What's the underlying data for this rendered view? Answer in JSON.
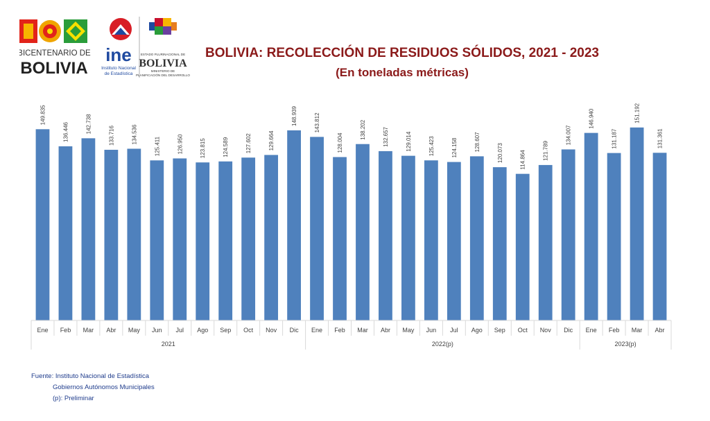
{
  "header": {
    "bicentenario_top": "BICENTENARIO DE",
    "bicentenario_bottom": "BOLIVIA",
    "ine_abbr": "ine",
    "ine_line1": "Instituto Nacional",
    "ine_line2": "de Estadística",
    "ministry_top": "ESTADO PLURINACIONAL DE",
    "ministry_country": "BOLIVIA",
    "ministry_line1": "MINISTERIO DE",
    "ministry_line2": "PLANIFICACIÓN DEL DESARROLLO"
  },
  "colors": {
    "bar": "#4f81bd",
    "title": "#8b1a1a",
    "footer": "#1f3c8c",
    "grid": "#d9d9d9"
  },
  "chart_data": {
    "type": "bar",
    "title": "BOLIVIA: RECOLECCIÓN DE RESIDUOS SÓLIDOS, 2021 - 2023",
    "subtitle": "(En toneladas métricas)",
    "categories": [
      "Ene",
      "Feb",
      "Mar",
      "Abr",
      "May",
      "Jun",
      "Jul",
      "Ago",
      "Sep",
      "Oct",
      "Nov",
      "Dic",
      "Ene",
      "Feb",
      "Mar",
      "Abr",
      "May",
      "Jun",
      "Jul",
      "Ago",
      "Sep",
      "Oct",
      "Nov",
      "Dic",
      "Ene",
      "Feb",
      "Mar",
      "Abr"
    ],
    "groups": [
      {
        "label": "2021",
        "count": 12
      },
      {
        "label": "2022(p)",
        "count": 12
      },
      {
        "label": "2023(p)",
        "count": 4
      }
    ],
    "values": [
      149835,
      136446,
      142738,
      133716,
      134536,
      125411,
      126950,
      123815,
      124589,
      127602,
      129664,
      148939,
      143812,
      128004,
      138202,
      132657,
      129014,
      125423,
      124158,
      128607,
      120073,
      114864,
      121789,
      134007,
      146940,
      131187,
      151192,
      131361
    ],
    "value_labels": [
      "149.835",
      "136.446",
      "142.738",
      "133.716",
      "134.536",
      "125.411",
      "126.950",
      "123.815",
      "124.589",
      "127.602",
      "129.664",
      "148.939",
      "143.812",
      "128.004",
      "138.202",
      "132.657",
      "129.014",
      "125.423",
      "124.158",
      "128.607",
      "120.073",
      "114.864",
      "121.789",
      "134.007",
      "146.940",
      "131.187",
      "151.192",
      "131.361"
    ],
    "ylim": [
      0,
      175000
    ],
    "grid": false,
    "legend": "none"
  },
  "footer": {
    "source_label": "Fuente:",
    "source_1": "Instituto Nacional de Estadística",
    "source_2": "Gobiernos Autónomos Municipales",
    "note": "(p): Preliminar"
  }
}
